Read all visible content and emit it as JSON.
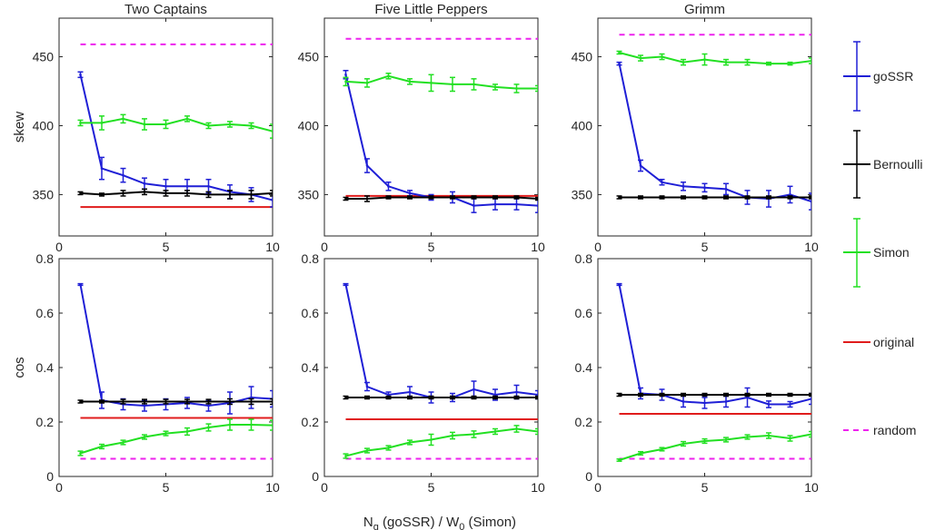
{
  "figure": {
    "xlabel_main": "N",
    "xlabel_sub": "g",
    "xlabel_mid": " (goSSR)  /  W",
    "xlabel_sub2": "0",
    "xlabel_tail": " (Simon)",
    "legend": [
      {
        "key": "goSSR",
        "label": "goSSR",
        "color": "#1f1fd6",
        "style": "errorbar"
      },
      {
        "key": "bernoulli",
        "label": "Bernoulli",
        "color": "#000000",
        "style": "errorbar"
      },
      {
        "key": "simon",
        "label": "Simon",
        "color": "#22e022",
        "style": "errorbar"
      },
      {
        "key": "original",
        "label": "original",
        "color": "#e01c1c",
        "style": "solid"
      },
      {
        "key": "random",
        "label": "random",
        "color": "#ee22ee",
        "style": "dashed"
      }
    ]
  },
  "chart_data": [
    {
      "type": "line",
      "panel": "Two Captains skew",
      "title": "Two Captains",
      "ylabel": "skew",
      "xlim": [
        0,
        10
      ],
      "ylim": [
        320,
        478
      ],
      "xticks": [
        0,
        5,
        10
      ],
      "yticks": [
        350,
        400,
        450
      ],
      "series": [
        {
          "key": "random",
          "x": [
            1,
            10
          ],
          "values": [
            459,
            459
          ]
        },
        {
          "key": "original",
          "x": [
            1,
            10
          ],
          "values": [
            341,
            341
          ]
        },
        {
          "key": "goSSR",
          "x": [
            1,
            2,
            3,
            4,
            5,
            6,
            7,
            8,
            9,
            10
          ],
          "values": [
            437,
            369,
            364,
            358,
            356,
            356,
            356,
            352,
            350,
            346
          ],
          "err": [
            2,
            8,
            5,
            4,
            5,
            5,
            5,
            5,
            5,
            5
          ]
        },
        {
          "key": "bernoulli",
          "x": [
            1,
            2,
            3,
            4,
            5,
            6,
            7,
            8,
            9,
            10
          ],
          "values": [
            351,
            350,
            351,
            352,
            351,
            351,
            350,
            350,
            350,
            351
          ],
          "err": [
            1,
            1,
            2,
            2,
            2,
            2,
            2,
            3,
            3,
            2
          ]
        },
        {
          "key": "simon",
          "x": [
            1,
            2,
            3,
            4,
            5,
            6,
            7,
            8,
            9,
            10
          ],
          "values": [
            402,
            402,
            405,
            401,
            401,
            405,
            400,
            401,
            400,
            396
          ],
          "err": [
            2,
            5,
            3,
            4,
            3,
            2,
            2,
            2,
            2,
            5
          ]
        }
      ]
    },
    {
      "type": "line",
      "panel": "Five Little Peppers skew",
      "title": "Five Little Peppers",
      "ylabel": "",
      "xlim": [
        0,
        10
      ],
      "ylim": [
        320,
        478
      ],
      "xticks": [
        0,
        5,
        10
      ],
      "yticks": [
        350,
        400,
        450
      ],
      "series": [
        {
          "key": "random",
          "x": [
            1,
            10
          ],
          "values": [
            463,
            463
          ]
        },
        {
          "key": "original",
          "x": [
            1,
            10
          ],
          "values": [
            349,
            349
          ]
        },
        {
          "key": "goSSR",
          "x": [
            1,
            2,
            3,
            4,
            5,
            6,
            7,
            8,
            9,
            10
          ],
          "values": [
            437,
            371,
            356,
            351,
            348,
            348,
            342,
            343,
            343,
            342
          ],
          "err": [
            3,
            5,
            3,
            2,
            2,
            4,
            5,
            4,
            4,
            5
          ]
        },
        {
          "key": "bernoulli",
          "x": [
            1,
            2,
            3,
            4,
            5,
            6,
            7,
            8,
            9,
            10
          ],
          "values": [
            347,
            347,
            348,
            348,
            348,
            348,
            348,
            348,
            348,
            347
          ],
          "err": [
            1,
            2,
            1,
            1,
            1,
            1,
            1,
            1,
            1,
            1
          ]
        },
        {
          "key": "simon",
          "x": [
            1,
            2,
            3,
            4,
            5,
            6,
            7,
            8,
            9,
            10
          ],
          "values": [
            432,
            431,
            436,
            432,
            431,
            430,
            430,
            428,
            427,
            427
          ],
          "err": [
            3,
            3,
            2,
            2,
            6,
            5,
            4,
            2,
            3,
            2
          ]
        }
      ]
    },
    {
      "type": "line",
      "panel": "Grimm skew",
      "title": "Grimm",
      "ylabel": "",
      "xlim": [
        0,
        10
      ],
      "ylim": [
        320,
        478
      ],
      "xticks": [
        0,
        5,
        10
      ],
      "yticks": [
        350,
        400,
        450
      ],
      "series": [
        {
          "key": "random",
          "x": [
            1,
            10
          ],
          "values": [
            466,
            466
          ]
        },
        {
          "key": "original",
          "x": [
            1,
            10
          ],
          "values": [
            348,
            348
          ]
        },
        {
          "key": "goSSR",
          "x": [
            1,
            2,
            3,
            4,
            5,
            6,
            7,
            8,
            9,
            10
          ],
          "values": [
            445,
            371,
            359,
            356,
            355,
            354,
            348,
            347,
            350,
            345
          ],
          "err": [
            1,
            4,
            2,
            3,
            3,
            4,
            5,
            6,
            6,
            6
          ]
        },
        {
          "key": "bernoulli",
          "x": [
            1,
            2,
            3,
            4,
            5,
            6,
            7,
            8,
            9,
            10
          ],
          "values": [
            348,
            348,
            348,
            348,
            348,
            348,
            348,
            348,
            348,
            348
          ],
          "err": [
            1,
            1,
            1,
            1,
            1,
            1,
            1,
            1,
            1,
            1
          ]
        },
        {
          "key": "simon",
          "x": [
            1,
            2,
            3,
            4,
            5,
            6,
            7,
            8,
            9,
            10
          ],
          "values": [
            453,
            449,
            450,
            446,
            448,
            446,
            446,
            445,
            445,
            447
          ],
          "err": [
            1,
            2,
            2,
            2,
            4,
            2,
            2,
            1,
            1,
            2
          ]
        }
      ]
    },
    {
      "type": "line",
      "panel": "Two Captains cos",
      "title": "",
      "ylabel": "cos",
      "xlim": [
        0,
        10
      ],
      "ylim": [
        0,
        0.8
      ],
      "xticks": [
        0,
        5,
        10
      ],
      "yticks": [
        0,
        0.2,
        0.4,
        0.6,
        0.8
      ],
      "series": [
        {
          "key": "random",
          "x": [
            1,
            10
          ],
          "values": [
            0.065,
            0.065
          ]
        },
        {
          "key": "original",
          "x": [
            1,
            10
          ],
          "values": [
            0.215,
            0.215
          ]
        },
        {
          "key": "goSSR",
          "x": [
            1,
            2,
            3,
            4,
            5,
            6,
            7,
            8,
            9,
            10
          ],
          "values": [
            0.705,
            0.28,
            0.265,
            0.26,
            0.265,
            0.27,
            0.26,
            0.27,
            0.29,
            0.285
          ],
          "err": [
            0.003,
            0.03,
            0.02,
            0.02,
            0.02,
            0.02,
            0.02,
            0.04,
            0.04,
            0.03
          ]
        },
        {
          "key": "bernoulli",
          "x": [
            1,
            2,
            3,
            4,
            5,
            6,
            7,
            8,
            9,
            10
          ],
          "values": [
            0.275,
            0.275,
            0.275,
            0.275,
            0.275,
            0.275,
            0.275,
            0.275,
            0.275,
            0.275
          ],
          "err": [
            0.005,
            0.005,
            0.008,
            0.008,
            0.008,
            0.008,
            0.008,
            0.01,
            0.01,
            0.01
          ]
        },
        {
          "key": "simon",
          "x": [
            1,
            2,
            3,
            4,
            5,
            6,
            7,
            8,
            9,
            10
          ],
          "values": [
            0.085,
            0.11,
            0.125,
            0.145,
            0.158,
            0.165,
            0.18,
            0.19,
            0.19,
            0.188
          ],
          "err": [
            0.008,
            0.008,
            0.008,
            0.008,
            0.008,
            0.013,
            0.013,
            0.02,
            0.02,
            0.018
          ]
        }
      ]
    },
    {
      "type": "line",
      "panel": "Five Little Peppers cos",
      "title": "",
      "ylabel": "",
      "xlim": [
        0,
        10
      ],
      "ylim": [
        0,
        0.8
      ],
      "xticks": [
        0,
        5,
        10
      ],
      "yticks": [
        0,
        0.2,
        0.4,
        0.6,
        0.8
      ],
      "series": [
        {
          "key": "random",
          "x": [
            1,
            10
          ],
          "values": [
            0.065,
            0.065
          ]
        },
        {
          "key": "original",
          "x": [
            1,
            10
          ],
          "values": [
            0.21,
            0.21
          ]
        },
        {
          "key": "goSSR",
          "x": [
            1,
            2,
            3,
            4,
            5,
            6,
            7,
            8,
            9,
            10
          ],
          "values": [
            0.705,
            0.33,
            0.3,
            0.31,
            0.29,
            0.29,
            0.32,
            0.3,
            0.31,
            0.3
          ],
          "err": [
            0.003,
            0.015,
            0.01,
            0.02,
            0.02,
            0.015,
            0.03,
            0.02,
            0.025,
            0.015
          ]
        },
        {
          "key": "bernoulli",
          "x": [
            1,
            2,
            3,
            4,
            5,
            6,
            7,
            8,
            9,
            10
          ],
          "values": [
            0.29,
            0.29,
            0.29,
            0.29,
            0.29,
            0.29,
            0.29,
            0.29,
            0.29,
            0.29
          ],
          "err": [
            0.005,
            0.005,
            0.005,
            0.005,
            0.005,
            0.005,
            0.005,
            0.005,
            0.005,
            0.005
          ]
        },
        {
          "key": "simon",
          "x": [
            1,
            2,
            3,
            4,
            5,
            6,
            7,
            8,
            9,
            10
          ],
          "values": [
            0.075,
            0.095,
            0.105,
            0.125,
            0.135,
            0.15,
            0.155,
            0.165,
            0.175,
            0.165
          ],
          "err": [
            0.008,
            0.008,
            0.008,
            0.008,
            0.02,
            0.012,
            0.012,
            0.01,
            0.012,
            0.01
          ]
        }
      ]
    },
    {
      "type": "line",
      "panel": "Grimm cos",
      "title": "",
      "ylabel": "",
      "xlim": [
        0,
        10
      ],
      "ylim": [
        0,
        0.8
      ],
      "xticks": [
        0,
        5,
        10
      ],
      "yticks": [
        0,
        0.2,
        0.4,
        0.6,
        0.8
      ],
      "series": [
        {
          "key": "random",
          "x": [
            1,
            10
          ],
          "values": [
            0.065,
            0.065
          ]
        },
        {
          "key": "original",
          "x": [
            1,
            10
          ],
          "values": [
            0.23,
            0.23
          ]
        },
        {
          "key": "goSSR",
          "x": [
            1,
            2,
            3,
            4,
            5,
            6,
            7,
            8,
            9,
            10
          ],
          "values": [
            0.705,
            0.305,
            0.3,
            0.275,
            0.27,
            0.275,
            0.29,
            0.265,
            0.265,
            0.285
          ],
          "err": [
            0.003,
            0.02,
            0.02,
            0.02,
            0.02,
            0.02,
            0.035,
            0.012,
            0.01,
            0.02
          ]
        },
        {
          "key": "bernoulli",
          "x": [
            1,
            2,
            3,
            4,
            5,
            6,
            7,
            8,
            9,
            10
          ],
          "values": [
            0.3,
            0.3,
            0.3,
            0.3,
            0.3,
            0.3,
            0.3,
            0.3,
            0.3,
            0.3
          ],
          "err": [
            0.005,
            0.005,
            0.005,
            0.005,
            0.005,
            0.005,
            0.005,
            0.005,
            0.005,
            0.005
          ]
        },
        {
          "key": "simon",
          "x": [
            1,
            2,
            3,
            4,
            5,
            6,
            7,
            8,
            9,
            10
          ],
          "values": [
            0.06,
            0.085,
            0.1,
            0.12,
            0.13,
            0.135,
            0.145,
            0.15,
            0.14,
            0.155
          ],
          "err": [
            0.004,
            0.006,
            0.006,
            0.008,
            0.008,
            0.008,
            0.008,
            0.01,
            0.01,
            0.01
          ]
        }
      ]
    }
  ]
}
